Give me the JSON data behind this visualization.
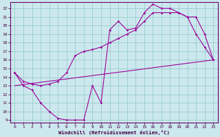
{
  "xlabel": "Windchill (Refroidissement éolien,°C)",
  "bg_color": "#cce8ee",
  "line_color": "#990099",
  "grid_color": "#99cccc",
  "axis_color": "#660066",
  "tick_color": "#440044",
  "xlim": [
    -0.5,
    23.5
  ],
  "ylim": [
    8.7,
    22.7
  ],
  "xticks": [
    0,
    1,
    2,
    3,
    4,
    5,
    6,
    7,
    8,
    9,
    10,
    11,
    12,
    13,
    14,
    15,
    16,
    17,
    18,
    19,
    20,
    21,
    22,
    23
  ],
  "yticks": [
    9,
    10,
    11,
    12,
    13,
    14,
    15,
    16,
    17,
    18,
    19,
    20,
    21,
    22
  ],
  "curve1_x": [
    0,
    1,
    2,
    3,
    4,
    5,
    6,
    7,
    8,
    9,
    10,
    11,
    12,
    13,
    14,
    15,
    16,
    17,
    18,
    19,
    20,
    21,
    22,
    23
  ],
  "curve1_y": [
    14.5,
    13.0,
    12.5,
    11.0,
    10.0,
    9.2,
    9.0,
    9.0,
    9.0,
    13.0,
    11.0,
    19.5,
    20.5,
    19.5,
    19.7,
    21.5,
    22.5,
    22.0,
    22.0,
    21.5,
    21.0,
    19.0,
    17.5,
    16.0
  ],
  "curve2_x": [
    0,
    1,
    2,
    3,
    4,
    5,
    6,
    7,
    8,
    9,
    10,
    11,
    12,
    13,
    14,
    15,
    16,
    17,
    18,
    19,
    20,
    21,
    22,
    23
  ],
  "curve2_y": [
    14.5,
    13.5,
    13.2,
    13.0,
    13.2,
    13.5,
    14.5,
    16.5,
    17.0,
    17.2,
    17.5,
    18.0,
    18.5,
    19.0,
    19.5,
    20.5,
    21.5,
    21.5,
    21.5,
    21.5,
    21.0,
    21.0,
    19.0,
    16.0
  ],
  "curve3_x": [
    0,
    23
  ],
  "curve3_y": [
    13.0,
    16.0
  ]
}
